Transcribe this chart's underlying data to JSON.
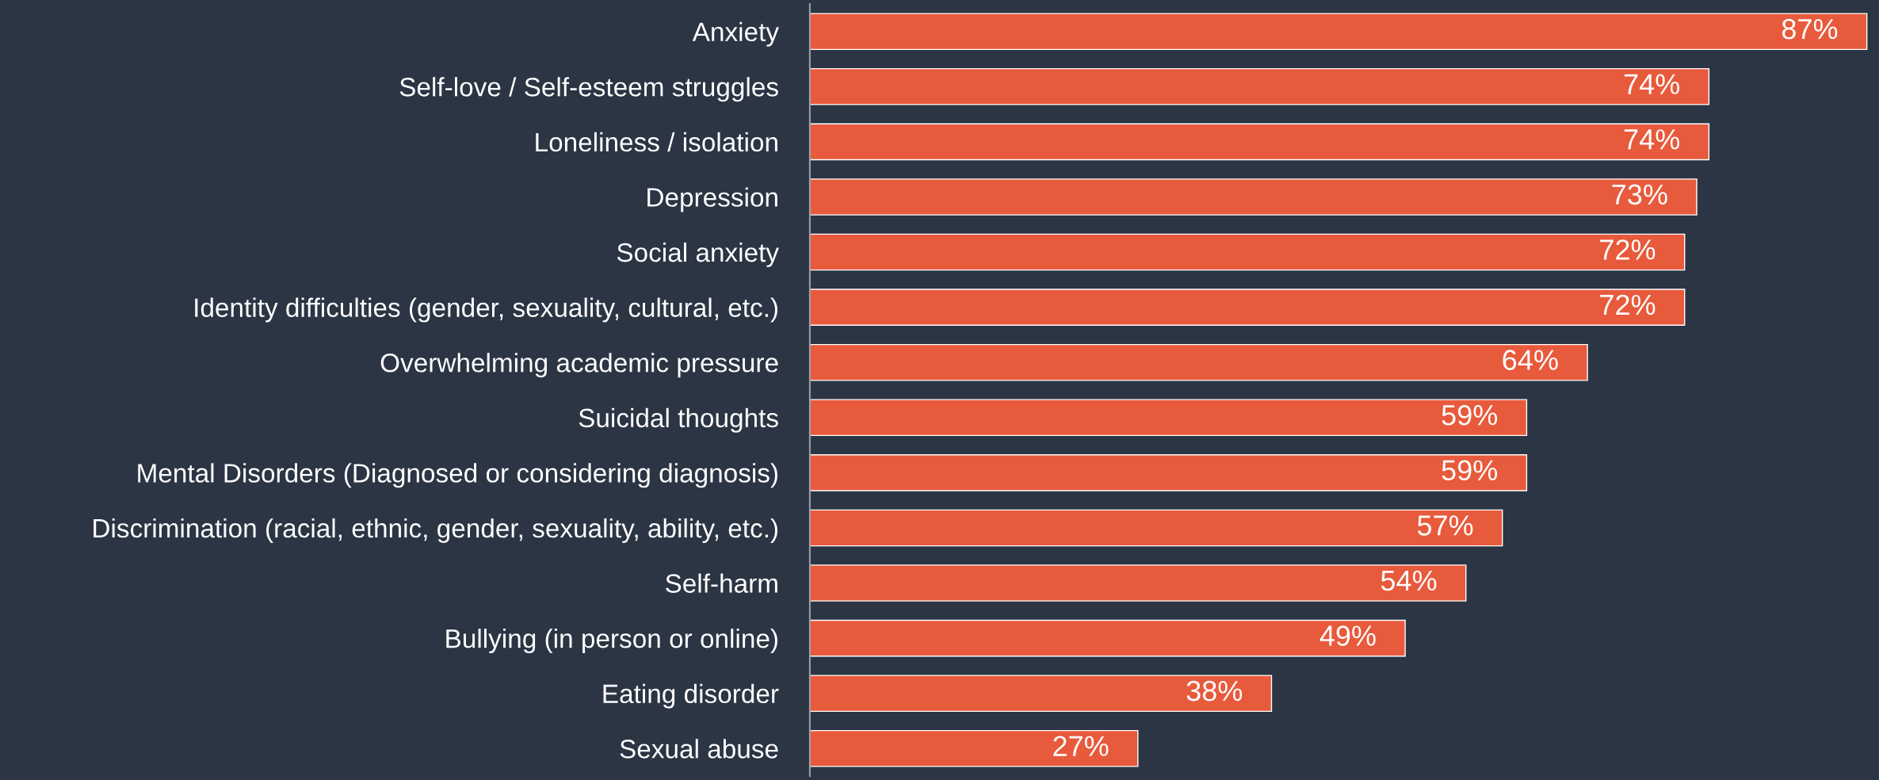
{
  "chart_data": {
    "type": "bar",
    "orientation": "horizontal",
    "categories": [
      "Anxiety",
      "Self-love / Self-esteem struggles",
      "Loneliness / isolation",
      "Depression",
      "Social anxiety",
      "Identity difficulties (gender, sexuality, cultural, etc.)",
      "Overwhelming academic pressure",
      "Suicidal thoughts",
      "Mental Disorders (Diagnosed or considering diagnosis)",
      "Discrimination (racial, ethnic, gender, sexuality, ability, etc.)",
      "Self-harm",
      "Bullying (in person or online)",
      "Eating disorder",
      "Sexual abuse"
    ],
    "values": [
      87,
      74,
      74,
      73,
      72,
      72,
      64,
      59,
      59,
      57,
      54,
      49,
      38,
      27
    ],
    "value_labels": [
      "87%",
      "74%",
      "74%",
      "73%",
      "72%",
      "72%",
      "64%",
      "59%",
      "59%",
      "57%",
      "54%",
      "49%",
      "38%",
      "27%"
    ],
    "color": "#e85a3c",
    "xlim": [
      0,
      88
    ],
    "tick_labels": "y",
    "grid": false,
    "legend": false
  }
}
